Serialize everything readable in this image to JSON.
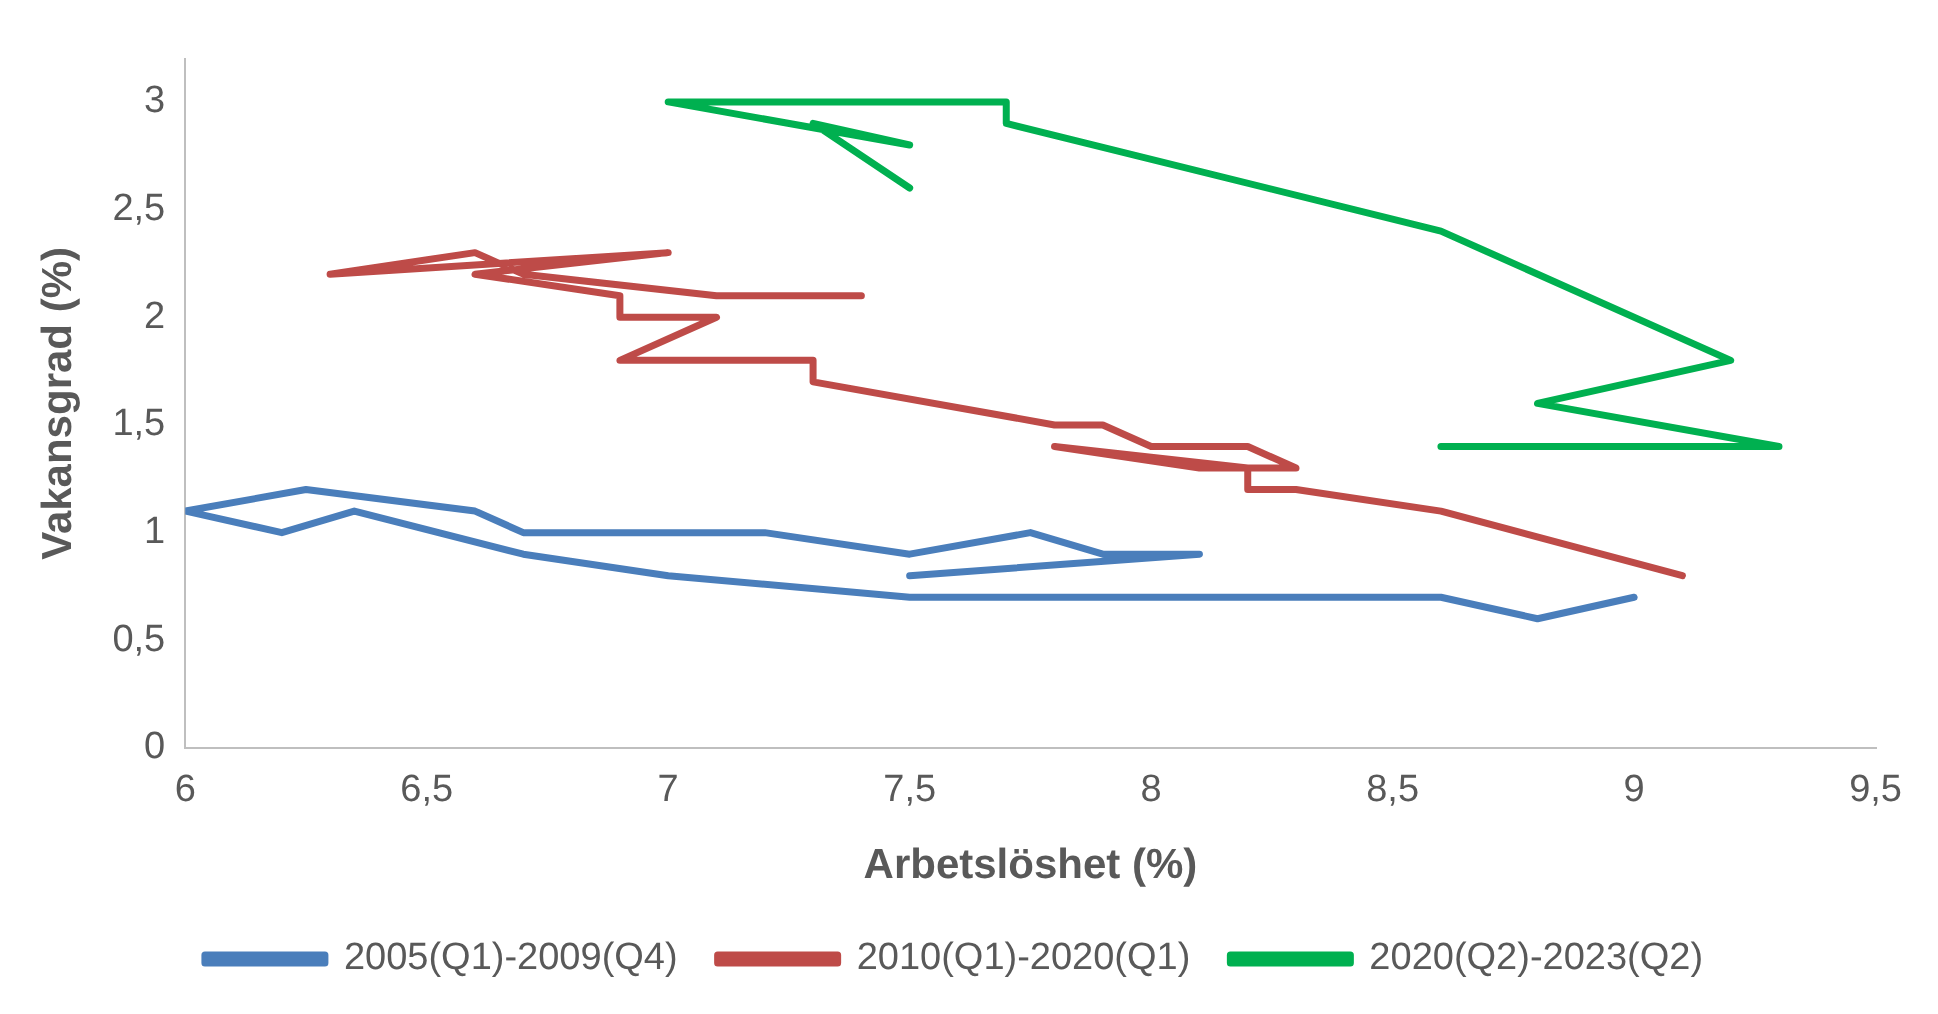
{
  "chart_data": {
    "type": "line",
    "xlabel": "Arbetslöshet (%)",
    "ylabel": "Vakansgrad (%)",
    "xlim": [
      6,
      9.5
    ],
    "xticks": [
      {
        "value": 6,
        "label": "6"
      },
      {
        "value": 6.5,
        "label": "6,5"
      },
      {
        "value": 7,
        "label": "7"
      },
      {
        "value": 7.5,
        "label": "7,5"
      },
      {
        "value": 8,
        "label": "8"
      },
      {
        "value": 8.5,
        "label": "8,5"
      },
      {
        "value": 9,
        "label": "9"
      },
      {
        "value": 9.5,
        "label": "9,5"
      }
    ],
    "ylim": [
      0,
      3.2
    ],
    "yticks": [
      {
        "value": 0,
        "label": "0"
      },
      {
        "value": 0.5,
        "label": "0,5"
      },
      {
        "value": 1,
        "label": "1"
      },
      {
        "value": 1.5,
        "label": "1,5"
      },
      {
        "value": 2,
        "label": "2"
      },
      {
        "value": 2.5,
        "label": "2,5"
      },
      {
        "value": 3,
        "label": "3"
      }
    ],
    "grid": false,
    "legend": "bottom",
    "marker": "none",
    "line_style": "solid",
    "series": [
      {
        "name": "2005(Q1)-2009(Q4)",
        "color": "#4a7ebb",
        "x": [
          7.5,
          8.1,
          7.9,
          7.75,
          7.5,
          7.2,
          6.7,
          6.6,
          6.25,
          6.0,
          6.2,
          6.35,
          6.7,
          7.0,
          7.5,
          8.6,
          8.8,
          9.0
        ],
        "values": [
          0.8,
          0.9,
          0.9,
          1.0,
          0.9,
          1.0,
          1.0,
          1.1,
          1.2,
          1.1,
          1.0,
          1.1,
          0.9,
          0.8,
          0.7,
          0.7,
          0.6,
          0.7
        ]
      },
      {
        "name": "2010(Q1)-2020(Q1)",
        "color": "#be4b48",
        "x": [
          9.1,
          8.6,
          8.3,
          8.2,
          8.2,
          7.8,
          8.1,
          8.3,
          8.2,
          8.0,
          7.9,
          7.8,
          7.3,
          7.3,
          6.9,
          7.1,
          6.9,
          6.9,
          6.6,
          7.0,
          6.3,
          6.6,
          6.7,
          7.1,
          7.4
        ],
        "values": [
          0.8,
          1.1,
          1.2,
          1.2,
          1.3,
          1.4,
          1.3,
          1.3,
          1.4,
          1.4,
          1.5,
          1.5,
          1.7,
          1.8,
          1.8,
          2.0,
          2.0,
          2.1,
          2.2,
          2.3,
          2.2,
          2.3,
          2.2,
          2.1,
          2.1
        ]
      },
      {
        "name": "2020(Q2)-2023(Q2)",
        "color": "#00b050",
        "x": [
          8.6,
          9.3,
          8.8,
          9.2,
          8.6,
          7.7,
          7.7,
          7.0,
          7.5,
          7.3,
          7.5
        ],
        "values": [
          1.4,
          1.4,
          1.6,
          1.8,
          2.4,
          2.9,
          3.0,
          3.0,
          2.8,
          2.9,
          2.6
        ]
      }
    ]
  }
}
